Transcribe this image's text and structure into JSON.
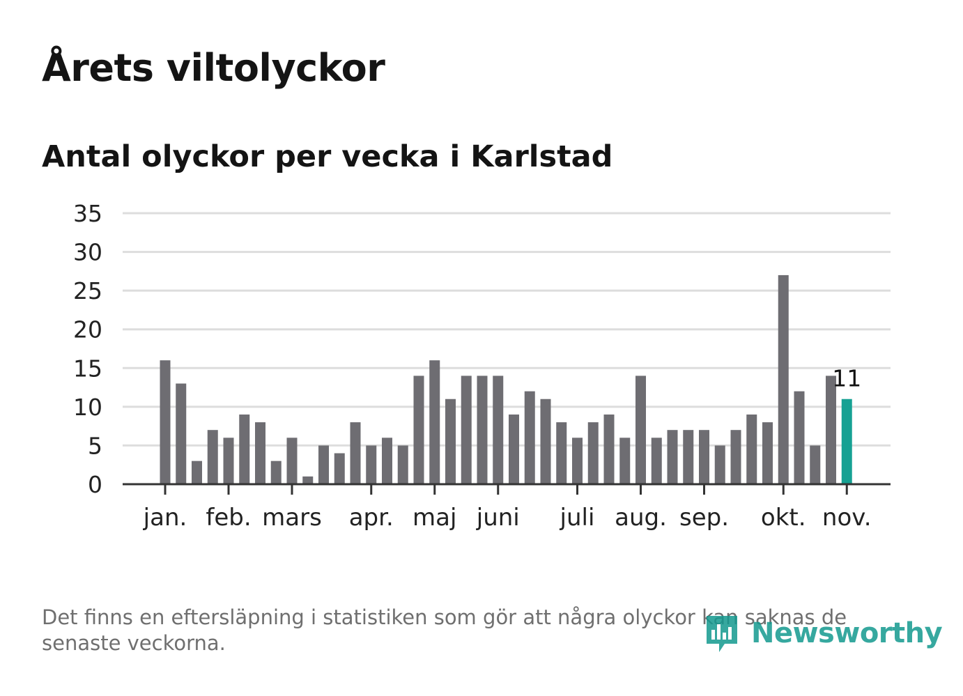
{
  "header": {
    "title": "Årets viltolyckor",
    "subtitle": "Antal olyckor per vecka i Karlstad"
  },
  "footer": {
    "note": "Det finns en eftersläpning i statistiken som gör att några olyckor kan saknas de senaste veckorna.",
    "brand": "Newsworthy"
  },
  "colors": {
    "bar": "#6e6d72",
    "highlight": "#16a193",
    "grid": "#dddddd",
    "axis": "#333333",
    "brand": "#14998f"
  },
  "chart_data": {
    "type": "bar",
    "title": "Antal olyckor per vecka i Karlstad",
    "xlabel": "",
    "ylabel": "",
    "ylim": [
      0,
      35
    ],
    "yticks": [
      0,
      5,
      10,
      15,
      20,
      25,
      30,
      35
    ],
    "grid": true,
    "weeks": [
      1,
      2,
      3,
      4,
      5,
      6,
      7,
      8,
      9,
      10,
      11,
      12,
      13,
      14,
      15,
      16,
      17,
      18,
      19,
      20,
      21,
      22,
      23,
      24,
      25,
      26,
      27,
      28,
      29,
      30,
      31,
      32,
      33,
      34,
      35,
      36,
      37,
      38,
      39,
      40,
      41,
      42,
      43,
      44
    ],
    "values": [
      16,
      13,
      3,
      7,
      6,
      9,
      8,
      3,
      6,
      1,
      5,
      4,
      8,
      5,
      6,
      5,
      14,
      16,
      11,
      14,
      14,
      14,
      9,
      12,
      11,
      8,
      6,
      8,
      9,
      6,
      14,
      6,
      7,
      7,
      7,
      5,
      7,
      9,
      8,
      27,
      12,
      5,
      14,
      11
    ],
    "highlight_index": 43,
    "highlight_label": "11",
    "month_labels": [
      {
        "label": "jan.",
        "week": 1
      },
      {
        "label": "feb.",
        "week": 5
      },
      {
        "label": "mars",
        "week": 9
      },
      {
        "label": "apr.",
        "week": 14
      },
      {
        "label": "maj",
        "week": 18
      },
      {
        "label": "juni",
        "week": 22
      },
      {
        "label": "juli",
        "week": 27
      },
      {
        "label": "aug.",
        "week": 31
      },
      {
        "label": "sep.",
        "week": 35
      },
      {
        "label": "okt.",
        "week": 40
      },
      {
        "label": "nov.",
        "week": 44
      }
    ]
  }
}
